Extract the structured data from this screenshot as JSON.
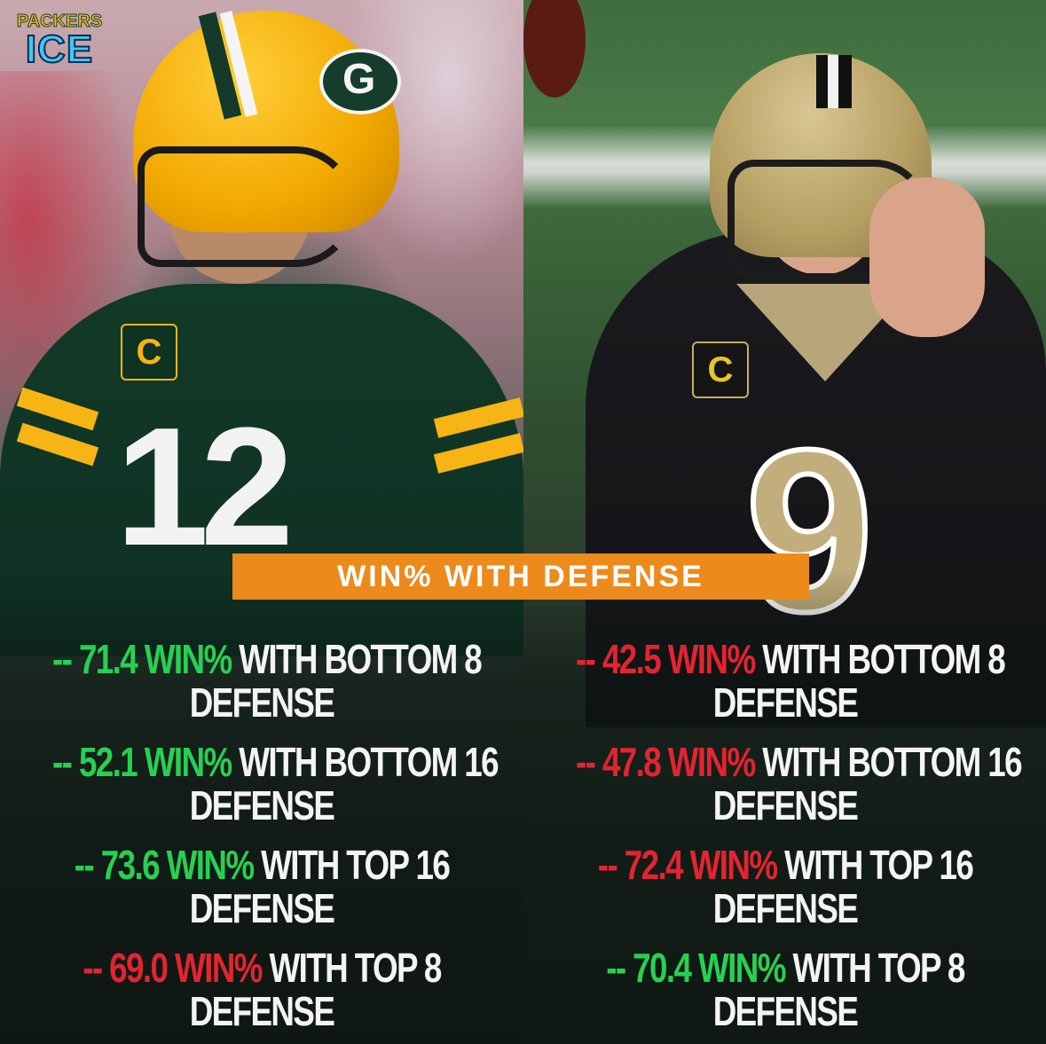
{
  "logo": {
    "top": "PACKERS",
    "bottom": "ICE"
  },
  "headline": "WIN% WITH DEFENSE",
  "left_player": {
    "badge": "C",
    "number": "12",
    "stats": [
      {
        "prefix": "-- ",
        "value": "71.4 WIN%",
        "color": "green",
        "label": " WITH BOTTOM 8",
        "line2": "DEFENSE"
      },
      {
        "prefix": "-- ",
        "value": "52.1 WIN%",
        "color": "green",
        "label": " WITH BOTTOM 16",
        "line2": "DEFENSE"
      },
      {
        "prefix": "-- ",
        "value": "73.6 WIN%",
        "color": "green",
        "label": " WITH TOP 16",
        "line2": "DEFENSE"
      },
      {
        "prefix": "-- ",
        "value": "69.0 WIN%",
        "color": "red",
        "label": " WITH TOP 8",
        "line2": "DEFENSE"
      }
    ]
  },
  "right_player": {
    "badge": "C",
    "number": "9",
    "stats": [
      {
        "prefix": "-- ",
        "value": "42.5 WIN%",
        "color": "red",
        "label": " WITH BOTTOM 8",
        "line2": "DEFENSE"
      },
      {
        "prefix": "-- ",
        "value": "47.8 WIN%",
        "color": "red",
        "label": " WITH BOTTOM 16",
        "line2": "DEFENSE"
      },
      {
        "prefix": "-- ",
        "value": "72.4 WIN%",
        "color": "red",
        "label": " WITH TOP 16",
        "line2": "DEFENSE"
      },
      {
        "prefix": "-- ",
        "value": "70.4 WIN%",
        "color": "green",
        "label": " WITH TOP 8",
        "line2": "DEFENSE"
      }
    ]
  },
  "colors": {
    "green": "#27d052",
    "red": "#e32431",
    "banner": "#ec8a1c"
  },
  "helmet_logo": "G"
}
